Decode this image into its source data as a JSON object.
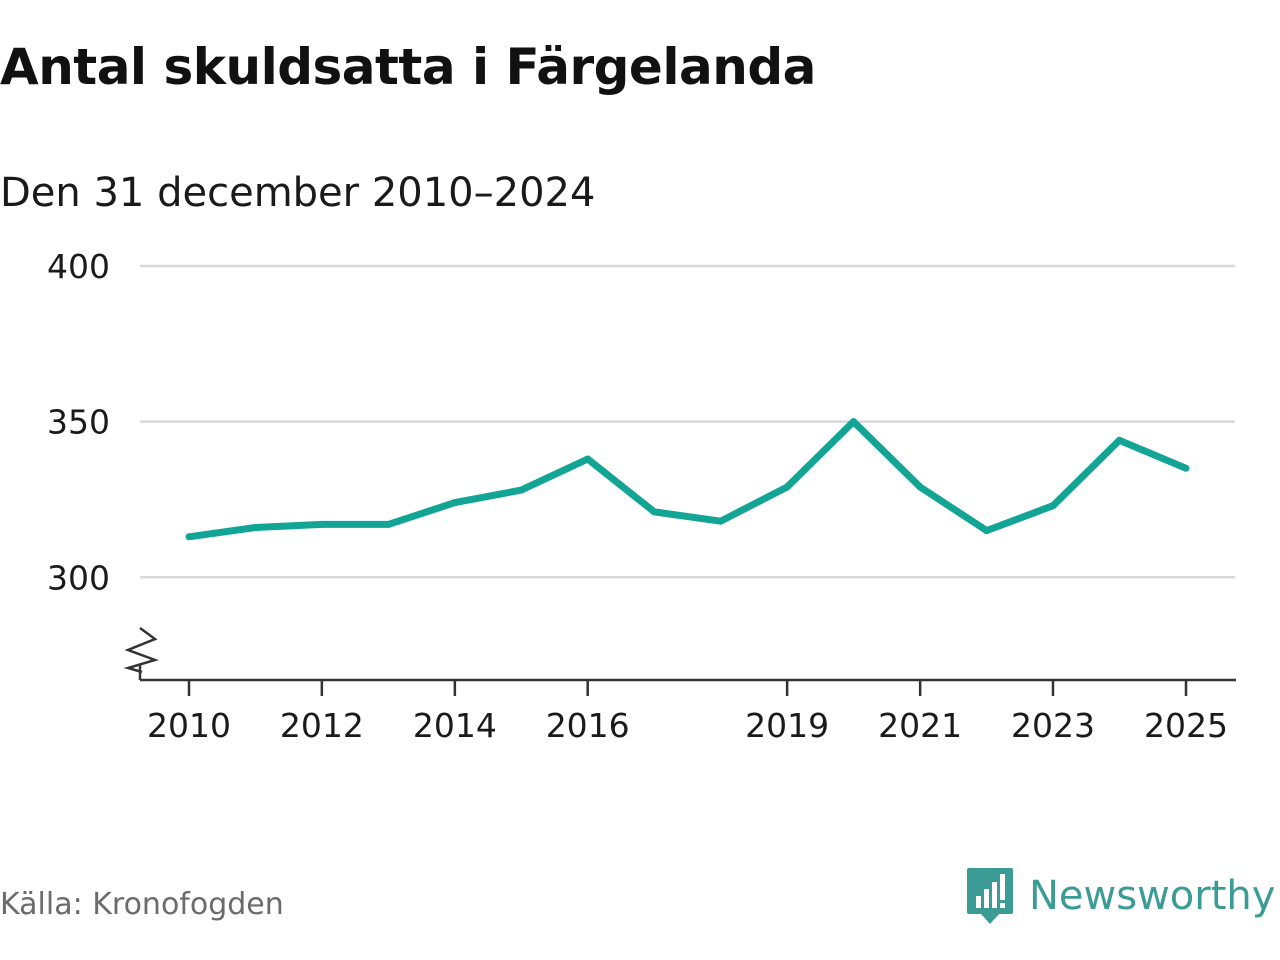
{
  "title": "Antal skuldsatta i Färgelanda",
  "subtitle": "Den 31 december 2010–2024",
  "source": "Källa: Kronofogden",
  "brand": {
    "name": "Newsworthy",
    "logo_icon": "newsworthy-logo-icon",
    "color": "#3a9c95"
  },
  "colors": {
    "line": "#12a596",
    "grid": "#d9d9d9",
    "axis": "#333333",
    "text": "#1a1a1a",
    "muted": "#6b6b6b"
  },
  "chart_data": {
    "type": "line",
    "title": "Antal skuldsatta i Färgelanda",
    "subtitle": "Den 31 december 2010–2024",
    "xlabel": "",
    "ylabel": "",
    "x_ticks": [
      "2010",
      "2012",
      "2014",
      "2016",
      "2019",
      "2021",
      "2023",
      "2025"
    ],
    "y_ticks": [
      "300",
      "350",
      "400"
    ],
    "ylim": [
      267,
      400
    ],
    "y_axis_break": true,
    "grid": "horizontal",
    "legend": "none",
    "series": [
      {
        "values": [
          {
            "x": "2010-01-01",
            "y": 313
          },
          {
            "x": "2011-01-01",
            "y": 316
          },
          {
            "x": "2012-01-01",
            "y": 317
          },
          {
            "x": "2013-01-01",
            "y": 317
          },
          {
            "x": "2014-01-01",
            "y": 324
          },
          {
            "x": "2015-01-01",
            "y": 328
          },
          {
            "x": "2016-01-01",
            "y": 338
          },
          {
            "x": "2017-01-01",
            "y": 321
          },
          {
            "x": "2018-01-01",
            "y": 318
          },
          {
            "x": "2019-01-01",
            "y": 329
          },
          {
            "x": "2020-01-01",
            "y": 350
          },
          {
            "x": "2021-01-01",
            "y": 329
          },
          {
            "x": "2022-01-01",
            "y": 315
          },
          {
            "x": "2023-01-01",
            "y": 323
          },
          {
            "x": "2024-01-01",
            "y": 344
          },
          {
            "x": "2025-01-01",
            "y": 335
          }
        ]
      }
    ]
  }
}
